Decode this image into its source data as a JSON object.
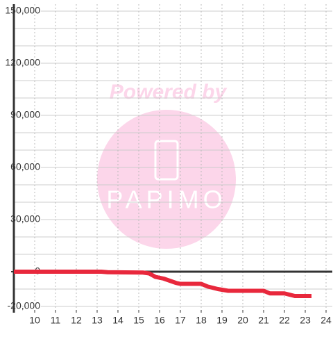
{
  "chart_data": {
    "type": "line",
    "watermark": {
      "title": "Powered by",
      "brand": "PAPIMO"
    },
    "x": [
      9,
      13.2,
      13.5,
      15.2,
      15.5,
      15.8,
      16.2,
      16.8,
      17,
      18,
      18.3,
      18.8,
      19.3,
      21,
      21.3,
      22,
      22.5,
      23.3
    ],
    "series": [
      {
        "color": "#e8283c",
        "values": [
          0,
          0,
          -300,
          -500,
          -1000,
          -3000,
          -4000,
          -6500,
          -7000,
          -7000,
          -8500,
          -10000,
          -11000,
          -11000,
          -12500,
          -12500,
          -14000,
          -14000
        ]
      }
    ],
    "xlim": [
      9,
      24.3
    ],
    "xticks": [
      10,
      11,
      12,
      13,
      14,
      15,
      16,
      17,
      18,
      19,
      20,
      21,
      22,
      23,
      24
    ],
    "ylim": [
      -20000,
      150000
    ],
    "yticks": [
      {
        "value": -20000,
        "label": "-20,000"
      },
      0,
      {
        "value": 30000,
        "label": "30,000"
      },
      {
        "value": 60000,
        "label": "60,000"
      },
      {
        "value": 90000,
        "label": "90,000"
      },
      {
        "value": 120000,
        "label": "120,000"
      },
      {
        "value": 150000,
        "label": "150,000"
      }
    ],
    "ygrid": [
      -20000,
      -10000,
      0,
      10000,
      20000,
      30000,
      40000,
      50000,
      60000,
      70000,
      80000,
      90000,
      100000,
      110000,
      120000,
      130000,
      140000,
      150000
    ],
    "grid": true
  }
}
